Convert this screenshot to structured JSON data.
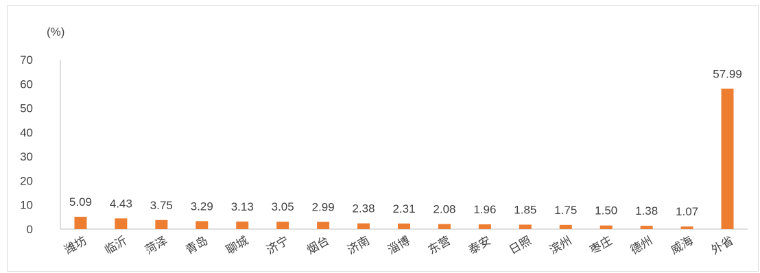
{
  "chart_data": {
    "type": "bar",
    "ylabel": "(%)",
    "ylim": [
      0,
      70
    ],
    "yticks": [
      "0",
      "10",
      "20",
      "30",
      "40",
      "50",
      "60",
      "70"
    ],
    "grid": false,
    "legend": "none",
    "categories": [
      "潍坊",
      "临沂",
      "菏泽",
      "青岛",
      "聊城",
      "济宁",
      "烟台",
      "济南",
      "淄博",
      "东营",
      "泰安",
      "日照",
      "滨州",
      "枣庄",
      "德州",
      "威海",
      "外省"
    ],
    "values": [
      5.09,
      4.43,
      3.75,
      3.29,
      3.13,
      3.05,
      2.99,
      2.38,
      2.31,
      2.08,
      1.96,
      1.85,
      1.75,
      1.5,
      1.38,
      1.07,
      57.99
    ],
    "value_labels": [
      "5.09",
      "4.43",
      "3.75",
      "3.29",
      "3.13",
      "3.05",
      "2.99",
      "2.38",
      "2.31",
      "2.08",
      "1.96",
      "1.85",
      "1.75",
      "1.50",
      "1.38",
      "1.07",
      "57.99"
    ],
    "bar_color": "#ED7D31",
    "axis_color": "#BFBFBF"
  }
}
